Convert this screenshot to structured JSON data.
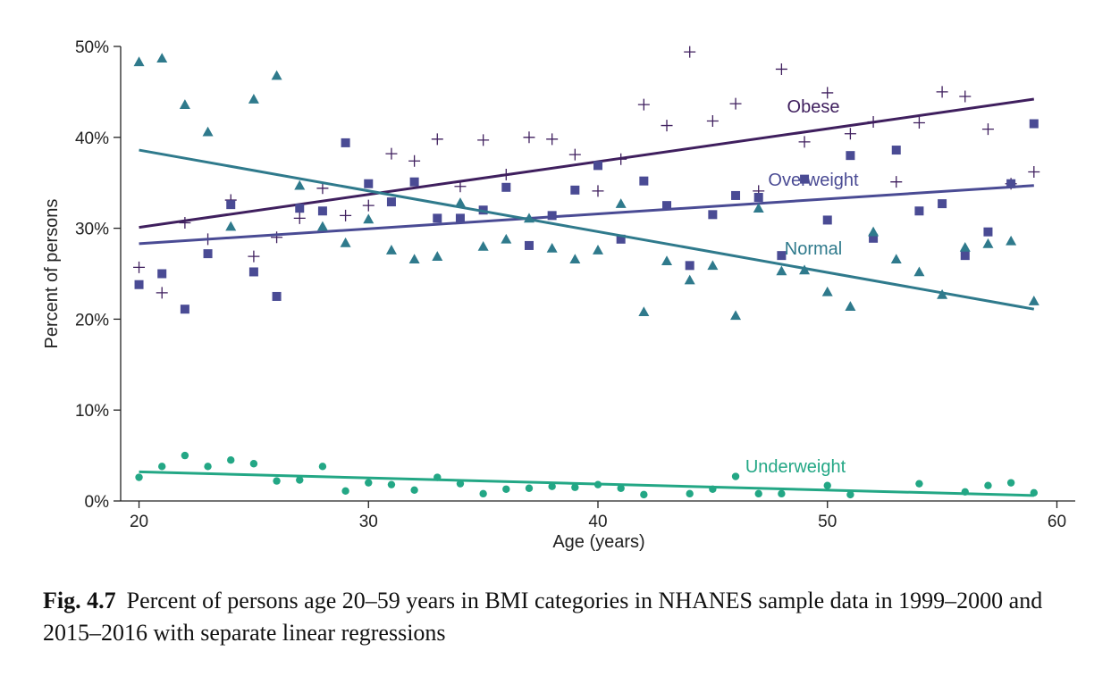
{
  "caption": {
    "label": "Fig. 4.7",
    "text": "Percent of persons age 20–59 years in BMI categories in NHANES sample data in 1999–2000 and 2015–2016 with separate linear regressions"
  },
  "chart_data": {
    "type": "scatter",
    "title": "",
    "xlabel": "Age (years)",
    "ylabel": "Percent of persons",
    "xlim": [
      19.2,
      60.8
    ],
    "ylim": [
      0,
      50
    ],
    "xticks": [
      20,
      30,
      40,
      50,
      60
    ],
    "yticks": [
      0,
      10,
      20,
      30,
      40,
      50
    ],
    "xtick_labels": [
      "20",
      "30",
      "40",
      "50",
      "60"
    ],
    "ytick_labels": [
      "0%",
      "10%",
      "20%",
      "30%",
      "40%",
      "50%"
    ],
    "grid": false,
    "legend": "inline labels",
    "series": [
      {
        "name": "Obese",
        "color": "#3f1f5e",
        "marker": "plus",
        "points": [
          [
            20,
            25.7
          ],
          [
            21,
            22.9
          ],
          [
            22,
            30.6
          ],
          [
            23,
            28.8
          ],
          [
            24,
            33.1
          ],
          [
            25,
            26.9
          ],
          [
            26,
            29.0
          ],
          [
            27,
            31.1
          ],
          [
            28,
            34.4
          ],
          [
            29,
            31.4
          ],
          [
            30,
            32.5
          ],
          [
            31,
            38.2
          ],
          [
            32,
            37.4
          ],
          [
            33,
            39.8
          ],
          [
            34,
            34.6
          ],
          [
            35,
            39.7
          ],
          [
            36,
            35.9
          ],
          [
            37,
            40.0
          ],
          [
            38,
            39.8
          ],
          [
            39,
            38.1
          ],
          [
            40,
            34.1
          ],
          [
            41,
            37.6
          ],
          [
            42,
            43.6
          ],
          [
            43,
            41.3
          ],
          [
            44,
            49.4
          ],
          [
            45,
            41.8
          ],
          [
            46,
            43.7
          ],
          [
            47,
            34.1
          ],
          [
            48,
            47.5
          ],
          [
            49,
            39.5
          ],
          [
            50,
            44.9
          ],
          [
            51,
            40.4
          ],
          [
            52,
            41.7
          ],
          [
            53,
            35.1
          ],
          [
            54,
            41.6
          ],
          [
            55,
            45.0
          ],
          [
            56,
            44.5
          ],
          [
            57,
            40.9
          ],
          [
            58,
            34.9
          ],
          [
            59,
            36.2
          ]
        ],
        "regression": [
          [
            20,
            30.1
          ],
          [
            59,
            44.2
          ]
        ]
      },
      {
        "name": "Overweight",
        "color": "#4a4b94",
        "marker": "square",
        "points": [
          [
            20,
            23.8
          ],
          [
            21,
            25.0
          ],
          [
            22,
            21.1
          ],
          [
            23,
            27.2
          ],
          [
            24,
            32.6
          ],
          [
            25,
            25.2
          ],
          [
            26,
            22.5
          ],
          [
            27,
            32.2
          ],
          [
            28,
            31.9
          ],
          [
            29,
            39.4
          ],
          [
            30,
            34.9
          ],
          [
            31,
            32.9
          ],
          [
            32,
            35.1
          ],
          [
            33,
            31.1
          ],
          [
            34,
            31.1
          ],
          [
            35,
            32.0
          ],
          [
            36,
            34.5
          ],
          [
            37,
            28.1
          ],
          [
            38,
            31.4
          ],
          [
            39,
            34.2
          ],
          [
            40,
            36.9
          ],
          [
            41,
            28.8
          ],
          [
            42,
            35.2
          ],
          [
            43,
            32.5
          ],
          [
            44,
            25.9
          ],
          [
            45,
            31.5
          ],
          [
            46,
            33.6
          ],
          [
            47,
            33.4
          ],
          [
            48,
            27.0
          ],
          [
            49,
            35.4
          ],
          [
            50,
            30.9
          ],
          [
            51,
            38.0
          ],
          [
            52,
            28.9
          ],
          [
            53,
            38.6
          ],
          [
            54,
            31.9
          ],
          [
            55,
            32.7
          ],
          [
            56,
            27.0
          ],
          [
            57,
            29.6
          ],
          [
            58,
            34.9
          ],
          [
            59,
            41.5
          ]
        ],
        "regression": [
          [
            20,
            28.3
          ],
          [
            59,
            34.7
          ]
        ]
      },
      {
        "name": "Normal",
        "color": "#2f7a8c",
        "marker": "triangle",
        "points": [
          [
            20,
            48.3
          ],
          [
            21,
            48.7
          ],
          [
            22,
            43.6
          ],
          [
            23,
            40.6
          ],
          [
            24,
            30.2
          ],
          [
            25,
            44.2
          ],
          [
            26,
            46.8
          ],
          [
            27,
            34.7
          ],
          [
            28,
            30.2
          ],
          [
            29,
            28.4
          ],
          [
            30,
            31.0
          ],
          [
            31,
            27.6
          ],
          [
            32,
            26.6
          ],
          [
            33,
            26.9
          ],
          [
            34,
            32.8
          ],
          [
            35,
            28.0
          ],
          [
            36,
            28.8
          ],
          [
            37,
            31.1
          ],
          [
            38,
            27.8
          ],
          [
            39,
            26.6
          ],
          [
            40,
            27.6
          ],
          [
            41,
            32.7
          ],
          [
            42,
            20.8
          ],
          [
            43,
            26.4
          ],
          [
            44,
            24.3
          ],
          [
            45,
            25.9
          ],
          [
            46,
            20.4
          ],
          [
            47,
            32.2
          ],
          [
            48,
            25.3
          ],
          [
            49,
            25.4
          ],
          [
            50,
            23.0
          ],
          [
            51,
            21.4
          ],
          [
            52,
            29.6
          ],
          [
            53,
            26.6
          ],
          [
            54,
            25.2
          ],
          [
            55,
            22.7
          ],
          [
            56,
            27.9
          ],
          [
            57,
            28.3
          ],
          [
            58,
            28.6
          ],
          [
            59,
            22.0
          ]
        ],
        "regression": [
          [
            20,
            38.6
          ],
          [
            59,
            21.1
          ]
        ]
      },
      {
        "name": "Underweight",
        "color": "#23a785",
        "marker": "circle",
        "points": [
          [
            20,
            2.6
          ],
          [
            21,
            3.8
          ],
          [
            22,
            5.0
          ],
          [
            23,
            3.8
          ],
          [
            24,
            4.5
          ],
          [
            25,
            4.1
          ],
          [
            26,
            2.2
          ],
          [
            27,
            2.3
          ],
          [
            28,
            3.8
          ],
          [
            29,
            1.1
          ],
          [
            30,
            2.0
          ],
          [
            31,
            1.8
          ],
          [
            32,
            1.2
          ],
          [
            33,
            2.6
          ],
          [
            34,
            1.9
          ],
          [
            35,
            0.8
          ],
          [
            36,
            1.3
          ],
          [
            37,
            1.4
          ],
          [
            38,
            1.6
          ],
          [
            39,
            1.5
          ],
          [
            40,
            1.8
          ],
          [
            41,
            1.4
          ],
          [
            42,
            0.7
          ],
          [
            44,
            0.8
          ],
          [
            45,
            1.3
          ],
          [
            46,
            2.7
          ],
          [
            47,
            0.8
          ],
          [
            48,
            0.8
          ],
          [
            50,
            1.7
          ],
          [
            51,
            0.7
          ],
          [
            54,
            1.9
          ],
          [
            56,
            1.0
          ],
          [
            57,
            1.7
          ],
          [
            58,
            2.0
          ],
          [
            59,
            0.9
          ]
        ],
        "regression": [
          [
            20,
            3.2
          ],
          [
            59,
            0.6
          ]
        ]
      }
    ]
  }
}
